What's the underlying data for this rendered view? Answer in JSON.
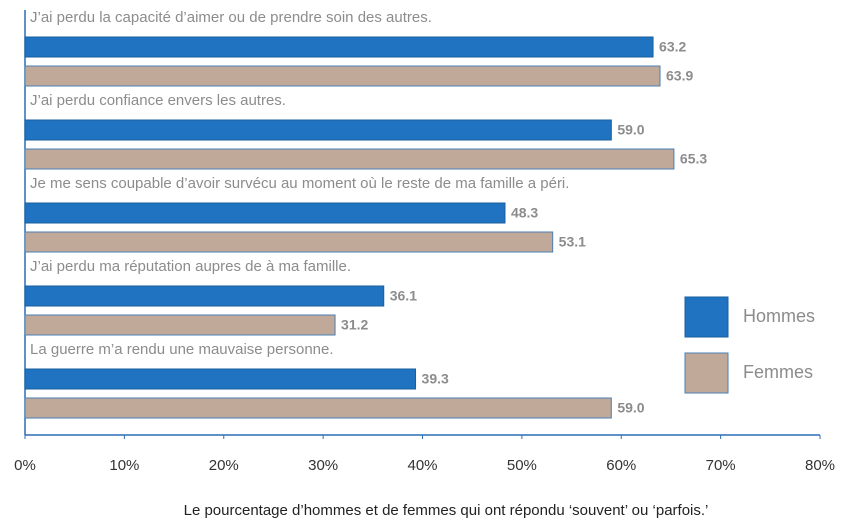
{
  "chart_data": {
    "type": "bar",
    "orientation": "horizontal",
    "categories": [
      "J’ai perdu la capacité d’aimer ou de prendre soin des autres.",
      "J’ai perdu confiance envers les autres.",
      "Je me sens coupable d’avoir survécu au moment où le reste de ma famille a péri.",
      "J’ai perdu ma réputation aupres de à ma famille.",
      "La guerre m’a rendu une mauvaise personne."
    ],
    "series": [
      {
        "name": "Hommes",
        "color": "#1f73c1",
        "edgecolor": "#1a5f9f",
        "values": [
          63.2,
          59.0,
          48.3,
          36.1,
          39.3
        ],
        "value_labels": [
          "63.2",
          "59.0",
          "48.3",
          "36.1",
          "39.3"
        ]
      },
      {
        "name": "Femmes",
        "color": "#c0a998",
        "edgecolor": "#4a7fb5",
        "values": [
          63.9,
          65.3,
          53.1,
          31.2,
          59.0
        ],
        "value_labels": [
          "63.9",
          "65.3",
          "53.1",
          "31.2",
          "59.0"
        ]
      }
    ],
    "xlabel": "Le pourcentage d’hommes et de femmes qui ont répondu ‘souvent’ ou ‘parfois.’",
    "xlim": [
      0,
      80
    ],
    "xticks": [
      {
        "value": 0,
        "label": "0%"
      },
      {
        "value": 10,
        "label": "10%"
      },
      {
        "value": 20,
        "label": "20%"
      },
      {
        "value": 30,
        "label": "30%"
      },
      {
        "value": 40,
        "label": "40%"
      },
      {
        "value": 50,
        "label": "50%"
      },
      {
        "value": 60,
        "label": "60%"
      },
      {
        "value": 70,
        "label": "70%"
      },
      {
        "value": 80,
        "label": "80%"
      }
    ],
    "legend": "right",
    "grid": false
  }
}
